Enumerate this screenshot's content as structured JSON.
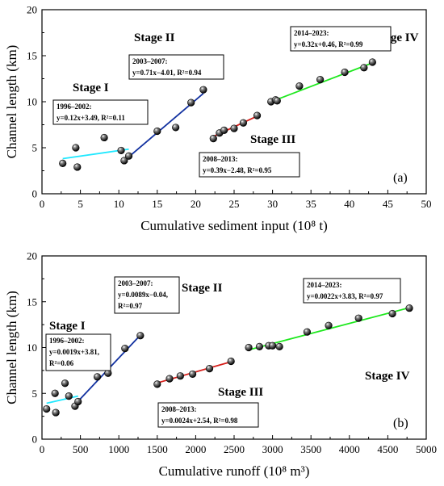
{
  "chart_data": [
    {
      "panel": "(a)",
      "type": "scatter",
      "xlabel": "Cumulative sediment input (10⁸ t)",
      "ylabel": "Channel length (km)",
      "xlim": [
        0,
        50
      ],
      "ylim": [
        0,
        20
      ],
      "xticks": [
        0,
        5,
        10,
        15,
        20,
        25,
        30,
        35,
        40,
        45,
        50
      ],
      "yticks": [
        0,
        5,
        10,
        15,
        20
      ],
      "points": [
        [
          2.7,
          3.3
        ],
        [
          4.4,
          5.0
        ],
        [
          4.6,
          2.9
        ],
        [
          8.1,
          6.1
        ],
        [
          10.3,
          4.7
        ],
        [
          10.7,
          3.6
        ],
        [
          11.3,
          4.1
        ],
        [
          15.0,
          6.8
        ],
        [
          17.4,
          7.2
        ],
        [
          19.4,
          9.9
        ],
        [
          21.0,
          11.3
        ],
        [
          22.3,
          6.0
        ],
        [
          23.1,
          6.6
        ],
        [
          23.7,
          6.9
        ],
        [
          25.0,
          7.1
        ],
        [
          26.2,
          7.7
        ],
        [
          28.0,
          8.5
        ],
        [
          29.8,
          10.0
        ],
        [
          30.4,
          10.2
        ],
        [
          30.6,
          10.1
        ],
        [
          33.5,
          11.7
        ],
        [
          36.2,
          12.4
        ],
        [
          39.4,
          13.2
        ],
        [
          41.9,
          13.7
        ],
        [
          43.0,
          14.3
        ]
      ],
      "fits": [
        {
          "stage": "Stage I",
          "years": "1996–2002:",
          "equation": "y=0.12x+3.49, R²=0.11",
          "slope": 0.12,
          "intercept": 3.49,
          "x_range": [
            2.7,
            11.3
          ],
          "color": "#1fe8ff"
        },
        {
          "stage": "Stage II",
          "years": "2003–2007:",
          "equation": "y=0.71x−4.01, R²=0.94",
          "slope": 0.71,
          "intercept": -4.01,
          "x_range": [
            11.2,
            21.0
          ],
          "color": "#1231a0"
        },
        {
          "stage": "Stage III",
          "years": "2008–2013:",
          "equation": "y=0.39x−2.48, R²=0.95",
          "slope": 0.39,
          "intercept": -2.48,
          "x_range": [
            22.3,
            28.0
          ],
          "color": "#d6201c"
        },
        {
          "stage": "Stage IV",
          "years": "2014–2023:",
          "equation": "y=0.32x+0.46, R²=0.99",
          "slope": 0.32,
          "intercept": 0.46,
          "x_range": [
            29.8,
            43.0
          ],
          "color": "#1ee81e"
        }
      ]
    },
    {
      "panel": "(b)",
      "type": "scatter",
      "xlabel": "Cumulative runoff (10⁸ m³)",
      "ylabel": "Channel length (km)",
      "xlim": [
        0,
        5000
      ],
      "ylim": [
        0,
        20
      ],
      "xticks": [
        0,
        500,
        1000,
        1500,
        2000,
        2500,
        3000,
        3500,
        4000,
        4500,
        5000
      ],
      "yticks": [
        0,
        5,
        10,
        15,
        20
      ],
      "points": [
        [
          60,
          3.3
        ],
        [
          170,
          5.0
        ],
        [
          180,
          2.9
        ],
        [
          300,
          6.1
        ],
        [
          350,
          4.7
        ],
        [
          430,
          3.6
        ],
        [
          470,
          4.1
        ],
        [
          720,
          6.8
        ],
        [
          860,
          7.2
        ],
        [
          1080,
          9.9
        ],
        [
          1280,
          11.3
        ],
        [
          1500,
          6.0
        ],
        [
          1660,
          6.6
        ],
        [
          1800,
          6.9
        ],
        [
          1960,
          7.1
        ],
        [
          2180,
          7.7
        ],
        [
          2460,
          8.5
        ],
        [
          2690,
          10.0
        ],
        [
          2830,
          10.1
        ],
        [
          2950,
          10.2
        ],
        [
          3000,
          10.2
        ],
        [
          3090,
          10.1
        ],
        [
          3450,
          11.7
        ],
        [
          3730,
          12.4
        ],
        [
          4120,
          13.2
        ],
        [
          4560,
          13.7
        ],
        [
          4780,
          14.3
        ]
      ],
      "fits": [
        {
          "stage": "Stage I",
          "years": "1996–2002:",
          "equation": "y=0.0019x+3.81, R²=0.06",
          "slope": 0.0019,
          "intercept": 3.81,
          "x_range": [
            60,
            470
          ],
          "color": "#1fe8ff"
        },
        {
          "stage": "Stage II",
          "years": "2003–2007:",
          "equation": "y=0.0089x−0.04, R²=0.97",
          "slope": 0.0089,
          "intercept": -0.04,
          "x_range": [
            470,
            1290
          ],
          "color": "#1231a0"
        },
        {
          "stage": "Stage III",
          "years": "2008–2013:",
          "equation": "y=0.0024x+2.54, R²=0.98",
          "slope": 0.0024,
          "intercept": 2.54,
          "x_range": [
            1500,
            2460
          ],
          "color": "#d6201c"
        },
        {
          "stage": "Stage IV",
          "years": "2014–2023:",
          "equation": "y=0.0022x+3.83, R²=0.97",
          "slope": 0.0022,
          "intercept": 3.83,
          "x_range": [
            2690,
            4780
          ],
          "color": "#1ee81e"
        }
      ]
    }
  ]
}
